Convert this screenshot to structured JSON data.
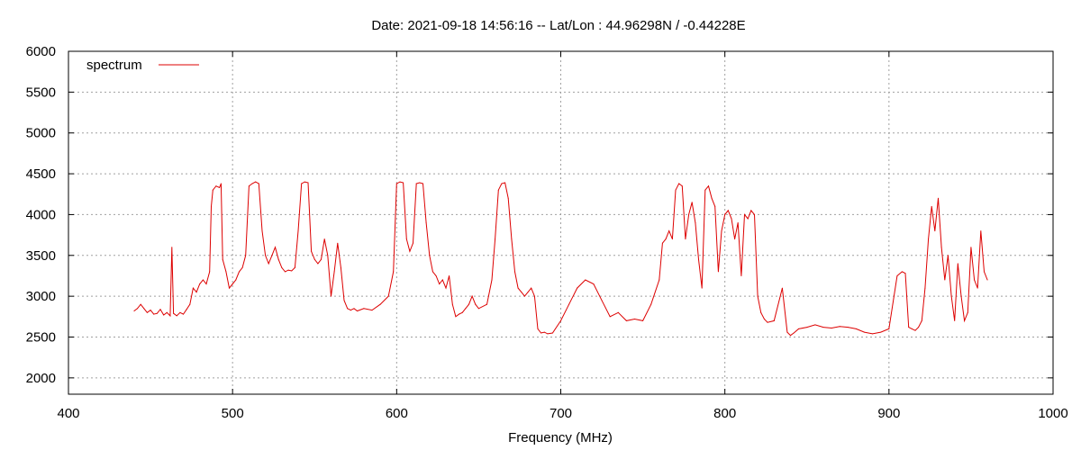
{
  "chart_data": {
    "type": "line",
    "title": "Date: 2021-09-18 14:56:16  --  Lat/Lon : 44.96298N / -0.44228E",
    "xlabel": "Frequency (MHz)",
    "ylabel": "",
    "xlim": [
      400,
      1000
    ],
    "ylim": [
      1800,
      6000
    ],
    "xticks": [
      400,
      500,
      600,
      700,
      800,
      900,
      1000
    ],
    "yticks": [
      2000,
      2500,
      3000,
      3500,
      4000,
      4500,
      5000,
      5500,
      6000
    ],
    "grid": true,
    "legend_position": "top-left",
    "series": [
      {
        "name": "spectrum",
        "color": "#dd0000",
        "x": [
          440,
          442,
          444,
          446,
          448,
          450,
          452,
          454,
          456,
          458,
          460,
          462,
          463,
          464,
          466,
          468,
          470,
          472,
          474,
          476,
          478,
          480,
          482,
          484,
          486,
          487,
          488,
          490,
          492,
          493,
          494,
          496,
          498,
          500,
          502,
          504,
          506,
          508,
          510,
          512,
          514,
          516,
          518,
          520,
          522,
          524,
          526,
          528,
          530,
          532,
          534,
          536,
          538,
          540,
          542,
          544,
          546,
          548,
          550,
          552,
          554,
          556,
          558,
          560,
          562,
          564,
          566,
          568,
          570,
          572,
          574,
          576,
          580,
          585,
          590,
          595,
          598,
          600,
          602,
          604,
          606,
          608,
          610,
          612,
          614,
          616,
          618,
          620,
          622,
          624,
          626,
          628,
          630,
          632,
          634,
          636,
          638,
          640,
          642,
          644,
          646,
          648,
          650,
          655,
          658,
          660,
          662,
          664,
          666,
          668,
          670,
          672,
          674,
          676,
          678,
          680,
          682,
          684,
          686,
          688,
          690,
          692,
          695,
          700,
          705,
          710,
          715,
          720,
          725,
          730,
          735,
          740,
          745,
          750,
          755,
          760,
          762,
          764,
          766,
          768,
          770,
          772,
          774,
          776,
          778,
          780,
          782,
          784,
          786,
          788,
          790,
          792,
          794,
          796,
          798,
          800,
          802,
          804,
          806,
          808,
          810,
          812,
          814,
          816,
          818,
          820,
          822,
          824,
          826,
          830,
          835,
          838,
          840,
          842,
          845,
          850,
          855,
          860,
          865,
          870,
          875,
          880,
          885,
          890,
          895,
          900,
          905,
          908,
          910,
          912,
          914,
          916,
          918,
          920,
          922,
          924,
          926,
          928,
          930,
          932,
          934,
          936,
          938,
          940,
          942,
          944,
          946,
          948,
          950,
          952,
          954,
          956,
          958,
          960
        ],
        "y": [
          2820,
          2850,
          2900,
          2850,
          2800,
          2830,
          2780,
          2790,
          2840,
          2770,
          2800,
          2760,
          3600,
          2790,
          2760,
          2800,
          2780,
          2840,
          2900,
          3100,
          3050,
          3150,
          3200,
          3150,
          3300,
          4100,
          4300,
          4350,
          4330,
          4380,
          3450,
          3300,
          3100,
          3150,
          3200,
          3300,
          3350,
          3500,
          4350,
          4380,
          4400,
          4380,
          3800,
          3500,
          3400,
          3500,
          3600,
          3450,
          3350,
          3300,
          3320,
          3310,
          3350,
          3800,
          4380,
          4400,
          4390,
          3550,
          3450,
          3400,
          3450,
          3700,
          3500,
          3000,
          3300,
          3650,
          3350,
          2950,
          2850,
          2830,
          2850,
          2820,
          2850,
          2830,
          2900,
          3000,
          3300,
          4380,
          4400,
          4390,
          3700,
          3550,
          3650,
          4380,
          4390,
          4380,
          3900,
          3500,
          3300,
          3250,
          3150,
          3200,
          3100,
          3250,
          2900,
          2750,
          2780,
          2800,
          2850,
          2900,
          3000,
          2900,
          2850,
          2900,
          3200,
          3700,
          4300,
          4380,
          4390,
          4200,
          3700,
          3300,
          3100,
          3050,
          3000,
          3050,
          3100,
          3000,
          2600,
          2550,
          2560,
          2540,
          2550,
          2700,
          2900,
          3100,
          3200,
          3150,
          2950,
          2750,
          2800,
          2700,
          2720,
          2700,
          2900,
          3200,
          3650,
          3700,
          3800,
          3700,
          4300,
          4380,
          4350,
          3700,
          4000,
          4150,
          3900,
          3450,
          3100,
          4300,
          4350,
          4200,
          4100,
          3300,
          3800,
          4000,
          4050,
          3950,
          3700,
          3900,
          3250,
          4000,
          3950,
          4050,
          4000,
          3000,
          2800,
          2720,
          2680,
          2700,
          3100,
          2560,
          2520,
          2550,
          2600,
          2620,
          2650,
          2620,
          2610,
          2630,
          2620,
          2600,
          2560,
          2540,
          2560,
          2600,
          3250,
          3300,
          3280,
          2620,
          2600,
          2580,
          2620,
          2700,
          3100,
          3700,
          4100,
          3800,
          4200,
          3600,
          3200,
          3500,
          3000,
          2700,
          3400,
          3000,
          2700,
          2800,
          3600,
          3200,
          3100,
          3800,
          3300,
          3200
        ]
      }
    ]
  }
}
